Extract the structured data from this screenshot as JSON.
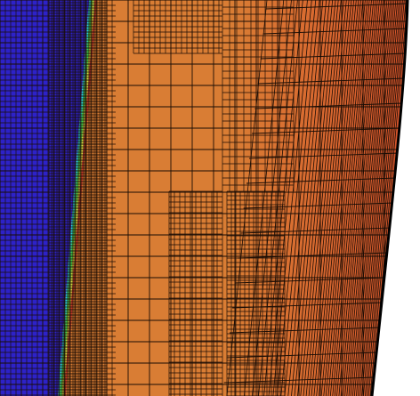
{
  "view": {
    "kind": "amr-mesh-visualization",
    "background": "#ffffff"
  },
  "colors": {
    "cold_region": "#2d22c8",
    "mid_region": "#d97d34",
    "hot_region": "#d8512b",
    "front_cyan": "#27d6e2",
    "front_green": "#3fcf4a",
    "front_yellow": "#d8d842",
    "front_red": "#c83a2a",
    "grid_lines": "#1a0d05",
    "boundary": "#000000"
  },
  "colormap": [
    "#2d22c8",
    "#27d6e2",
    "#3fcf4a",
    "#d8d842",
    "#d97d34",
    "#d8512b"
  ]
}
